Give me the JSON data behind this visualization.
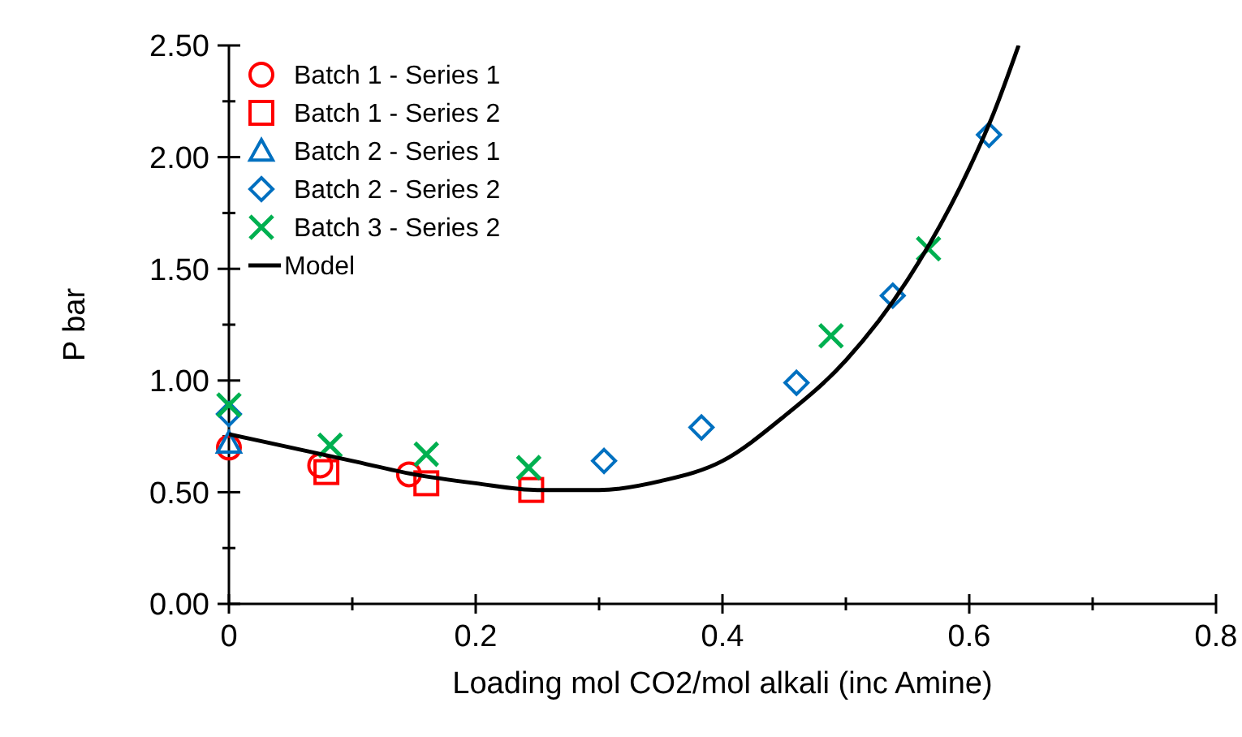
{
  "chart_data": {
    "type": "scatter",
    "xlabel": "Loading mol CO2/mol alkali (inc Amine)",
    "ylabel": "P bar",
    "xlim": [
      0,
      0.8
    ],
    "xticks": [
      0,
      {
        "value": 0.1,
        "label": null
      },
      0.2,
      {
        "value": 0.3,
        "label": null
      },
      0.4,
      {
        "value": 0.5,
        "label": null
      },
      0.6,
      {
        "value": 0.7,
        "label": null
      },
      0.8
    ],
    "ylim": [
      0,
      2.5
    ],
    "yticks": [
      {
        "value": 0,
        "label": "0.00"
      },
      {
        "value": 0.25,
        "label": null
      },
      {
        "value": 0.5,
        "label": "0.50"
      },
      {
        "value": 0.75,
        "label": null
      },
      {
        "value": 1,
        "label": "1.00"
      },
      {
        "value": 1.25,
        "label": null
      },
      {
        "value": 1.5,
        "label": "1.50"
      },
      {
        "value": 1.75,
        "label": null
      },
      {
        "value": 2,
        "label": "2.00"
      },
      {
        "value": 2.25,
        "label": null
      },
      {
        "value": 2.5,
        "label": "2.50"
      }
    ],
    "legend": "top left",
    "grid": false,
    "series": [
      {
        "name": "Batch 1 - Series 1",
        "color": "#ff0000",
        "marker": "circle",
        "x": [
          0,
          0.074,
          0.146
        ],
        "values": [
          0.7,
          0.62,
          0.58
        ]
      },
      {
        "name": "Batch 1 - Series 2",
        "color": "#ff0000",
        "marker": "square",
        "x": [
          0.079,
          0.16,
          0.245
        ],
        "values": [
          0.59,
          0.54,
          0.51
        ]
      },
      {
        "name": "Batch 2 - Series 1",
        "color": "#0070c0",
        "marker": "triangle",
        "x": [
          0
        ],
        "values": [
          0.72
        ]
      },
      {
        "name": "Batch 2 - Series 2",
        "color": "#0070c0",
        "marker": "diamond",
        "x": [
          0,
          0.304,
          0.383,
          0.46,
          0.538,
          0.616
        ],
        "values": [
          0.85,
          0.64,
          0.79,
          0.99,
          1.38,
          2.1
        ]
      },
      {
        "name": "Batch 3 - Series 2",
        "color": "#00b050",
        "marker": "cross",
        "x": [
          0,
          0.082,
          0.16,
          0.243,
          0.488,
          0.567
        ],
        "values": [
          0.89,
          0.71,
          0.67,
          0.61,
          1.2,
          1.59
        ]
      },
      {
        "name": "Model",
        "type": "line",
        "color": "#000000",
        "marker": "none",
        "line_style": "solid",
        "x": [
          0,
          0.05,
          0.1,
          0.15,
          0.2,
          0.25,
          0.3,
          0.35,
          0.4,
          0.45,
          0.5,
          0.55,
          0.6,
          0.62,
          0.64
        ],
        "values": [
          0.76,
          0.7,
          0.64,
          0.58,
          0.54,
          0.51,
          0.51,
          0.55,
          0.64,
          0.84,
          1.09,
          1.45,
          1.95,
          2.2,
          2.5
        ]
      }
    ]
  }
}
